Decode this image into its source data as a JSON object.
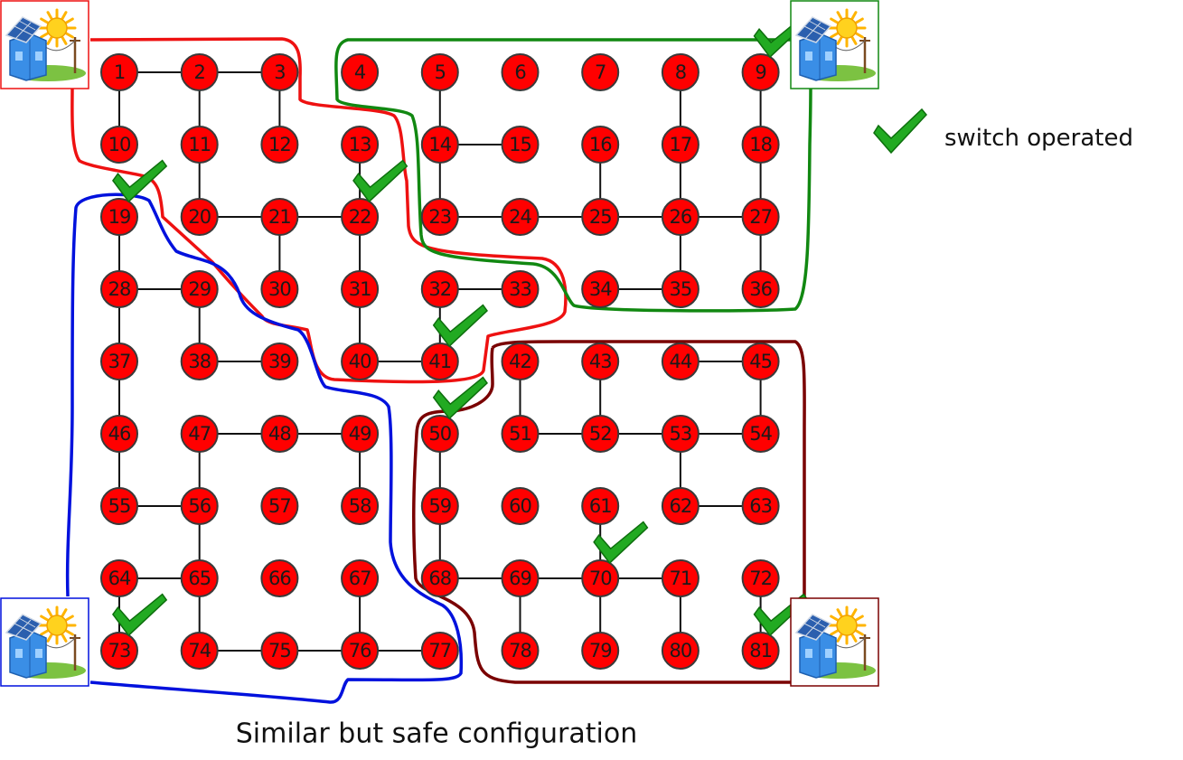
{
  "caption": "Similar but safe configuration",
  "legend": {
    "label": "switch operated",
    "icon": "check-icon"
  },
  "colors": {
    "node_fill": "#ff0000",
    "node_stroke": "#3a3a3a",
    "edge": "#111111",
    "check": "#22aa22",
    "region_top_left": "#ee1111",
    "region_top_right": "#118811",
    "region_bottom_left": "#0011dd",
    "region_bottom_right": "#7a0000"
  },
  "grid": {
    "rows": 9,
    "cols": 9
  },
  "nodes": [
    "1",
    "2",
    "3",
    "4",
    "5",
    "6",
    "7",
    "8",
    "9",
    "10",
    "11",
    "12",
    "13",
    "14",
    "15",
    "16",
    "17",
    "18",
    "19",
    "20",
    "21",
    "22",
    "23",
    "24",
    "25",
    "26",
    "27",
    "28",
    "29",
    "30",
    "31",
    "32",
    "33",
    "34",
    "35",
    "36",
    "37",
    "38",
    "39",
    "40",
    "41",
    "42",
    "43",
    "44",
    "45",
    "46",
    "47",
    "48",
    "49",
    "50",
    "51",
    "52",
    "53",
    "54",
    "55",
    "56",
    "57",
    "58",
    "59",
    "60",
    "61",
    "62",
    "63",
    "64",
    "65",
    "66",
    "67",
    "68",
    "69",
    "70",
    "71",
    "72",
    "73",
    "74",
    "75",
    "76",
    "77",
    "78",
    "79",
    "80",
    "81"
  ],
  "edges": [
    [
      1,
      2
    ],
    [
      2,
      3
    ],
    [
      1,
      10
    ],
    [
      2,
      11
    ],
    [
      3,
      12
    ],
    [
      13,
      22
    ],
    [
      5,
      14
    ],
    [
      14,
      15
    ],
    [
      14,
      23
    ],
    [
      8,
      17
    ],
    [
      9,
      18
    ],
    [
      16,
      25
    ],
    [
      17,
      26
    ],
    [
      18,
      27
    ],
    [
      11,
      20
    ],
    [
      19,
      28
    ],
    [
      20,
      21
    ],
    [
      21,
      22
    ],
    [
      21,
      30
    ],
    [
      22,
      31
    ],
    [
      23,
      24
    ],
    [
      24,
      25
    ],
    [
      25,
      26
    ],
    [
      26,
      27
    ],
    [
      26,
      35
    ],
    [
      27,
      36
    ],
    [
      28,
      29
    ],
    [
      28,
      37
    ],
    [
      29,
      38
    ],
    [
      31,
      40
    ],
    [
      32,
      33
    ],
    [
      32,
      41
    ],
    [
      34,
      35
    ],
    [
      37,
      46
    ],
    [
      38,
      39
    ],
    [
      40,
      41
    ],
    [
      42,
      51
    ],
    [
      43,
      52
    ],
    [
      44,
      45
    ],
    [
      45,
      54
    ],
    [
      46,
      55
    ],
    [
      47,
      48
    ],
    [
      48,
      49
    ],
    [
      47,
      56
    ],
    [
      49,
      58
    ],
    [
      50,
      59
    ],
    [
      51,
      52
    ],
    [
      52,
      53
    ],
    [
      53,
      54
    ],
    [
      53,
      62
    ],
    [
      55,
      56
    ],
    [
      56,
      65
    ],
    [
      59,
      68
    ],
    [
      61,
      70
    ],
    [
      62,
      63
    ],
    [
      64,
      65
    ],
    [
      64,
      73
    ],
    [
      65,
      74
    ],
    [
      67,
      76
    ],
    [
      68,
      69
    ],
    [
      69,
      70
    ],
    [
      70,
      71
    ],
    [
      69,
      78
    ],
    [
      70,
      79
    ],
    [
      71,
      80
    ],
    [
      72,
      81
    ],
    [
      74,
      75
    ],
    [
      75,
      76
    ],
    [
      76,
      77
    ]
  ],
  "switches": [
    9,
    19,
    22,
    41,
    50,
    70,
    73,
    81
  ],
  "sources": [
    {
      "corner": "top-left",
      "icon": "solar-house-icon",
      "color": "#ee1111"
    },
    {
      "corner": "top-right",
      "icon": "solar-house-icon",
      "color": "#118811"
    },
    {
      "corner": "bottom-left",
      "icon": "solar-house-icon",
      "color": "#0011dd"
    },
    {
      "corner": "bottom-right",
      "icon": "solar-house-icon",
      "color": "#7a0000"
    }
  ]
}
